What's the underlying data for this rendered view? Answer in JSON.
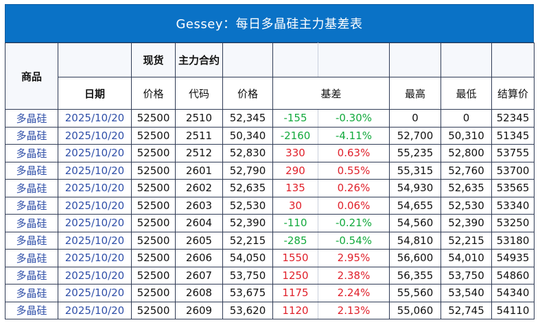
{
  "title": "Gessey：每日多晶硅主力基差表",
  "headers": {
    "commodity": "商品",
    "spot": "现货",
    "main_contract": "主力合约",
    "date": "日期",
    "spot_price": "价格",
    "code": "代码",
    "futures_price": "价格",
    "basis": "基差",
    "high": "最高",
    "low": "最低",
    "settle": "结算价"
  },
  "rows": [
    {
      "commodity": "多晶硅",
      "date": "2025/10/20",
      "spot": "52500",
      "code": "2510",
      "price": "52,345",
      "basis": "-155",
      "pct": "-0.30%",
      "high": "0",
      "low": "0",
      "settle": "52345",
      "dir": "neg"
    },
    {
      "commodity": "多晶硅",
      "date": "2025/10/20",
      "spot": "52500",
      "code": "2511",
      "price": "50,340",
      "basis": "-2160",
      "pct": "-4.11%",
      "high": "52,700",
      "low": "50,310",
      "settle": "51345",
      "dir": "neg"
    },
    {
      "commodity": "多晶硅",
      "date": "2025/10/20",
      "spot": "52500",
      "code": "2512",
      "price": "52,830",
      "basis": "330",
      "pct": "0.63%",
      "high": "55,235",
      "low": "52,800",
      "settle": "53755",
      "dir": "pos"
    },
    {
      "commodity": "多晶硅",
      "date": "2025/10/20",
      "spot": "52500",
      "code": "2601",
      "price": "52,790",
      "basis": "290",
      "pct": "0.55%",
      "high": "55,315",
      "low": "52,760",
      "settle": "53700",
      "dir": "pos"
    },
    {
      "commodity": "多晶硅",
      "date": "2025/10/20",
      "spot": "52500",
      "code": "2602",
      "price": "52,635",
      "basis": "135",
      "pct": "0.26%",
      "high": "54,930",
      "low": "52,635",
      "settle": "53565",
      "dir": "pos"
    },
    {
      "commodity": "多晶硅",
      "date": "2025/10/20",
      "spot": "52500",
      "code": "2603",
      "price": "52,530",
      "basis": "30",
      "pct": "0.06%",
      "high": "54,655",
      "low": "52,530",
      "settle": "53340",
      "dir": "pos"
    },
    {
      "commodity": "多晶硅",
      "date": "2025/10/20",
      "spot": "52500",
      "code": "2604",
      "price": "52,390",
      "basis": "-110",
      "pct": "-0.21%",
      "high": "54,560",
      "low": "52,390",
      "settle": "53250",
      "dir": "neg"
    },
    {
      "commodity": "多晶硅",
      "date": "2025/10/20",
      "spot": "52500",
      "code": "2605",
      "price": "52,215",
      "basis": "-285",
      "pct": "-0.54%",
      "high": "54,810",
      "low": "52,215",
      "settle": "53180",
      "dir": "neg"
    },
    {
      "commodity": "多晶硅",
      "date": "2025/10/20",
      "spot": "52500",
      "code": "2606",
      "price": "54,050",
      "basis": "1550",
      "pct": "2.95%",
      "high": "56,600",
      "low": "54,010",
      "settle": "54935",
      "dir": "pos"
    },
    {
      "commodity": "多晶硅",
      "date": "2025/10/20",
      "spot": "52500",
      "code": "2607",
      "price": "53,750",
      "basis": "1250",
      "pct": "2.38%",
      "high": "56,355",
      "low": "53,750",
      "settle": "54860",
      "dir": "pos"
    },
    {
      "commodity": "多晶硅",
      "date": "2025/10/20",
      "spot": "52500",
      "code": "2608",
      "price": "53,675",
      "basis": "1175",
      "pct": "2.24%",
      "high": "55,560",
      "low": "53,540",
      "settle": "54340",
      "dir": "pos"
    },
    {
      "commodity": "多晶硅",
      "date": "2025/10/20",
      "spot": "52500",
      "code": "2609",
      "price": "53,620",
      "basis": "1120",
      "pct": "2.13%",
      "high": "55,060",
      "low": "52,745",
      "settle": "54110",
      "dir": "pos"
    }
  ]
}
